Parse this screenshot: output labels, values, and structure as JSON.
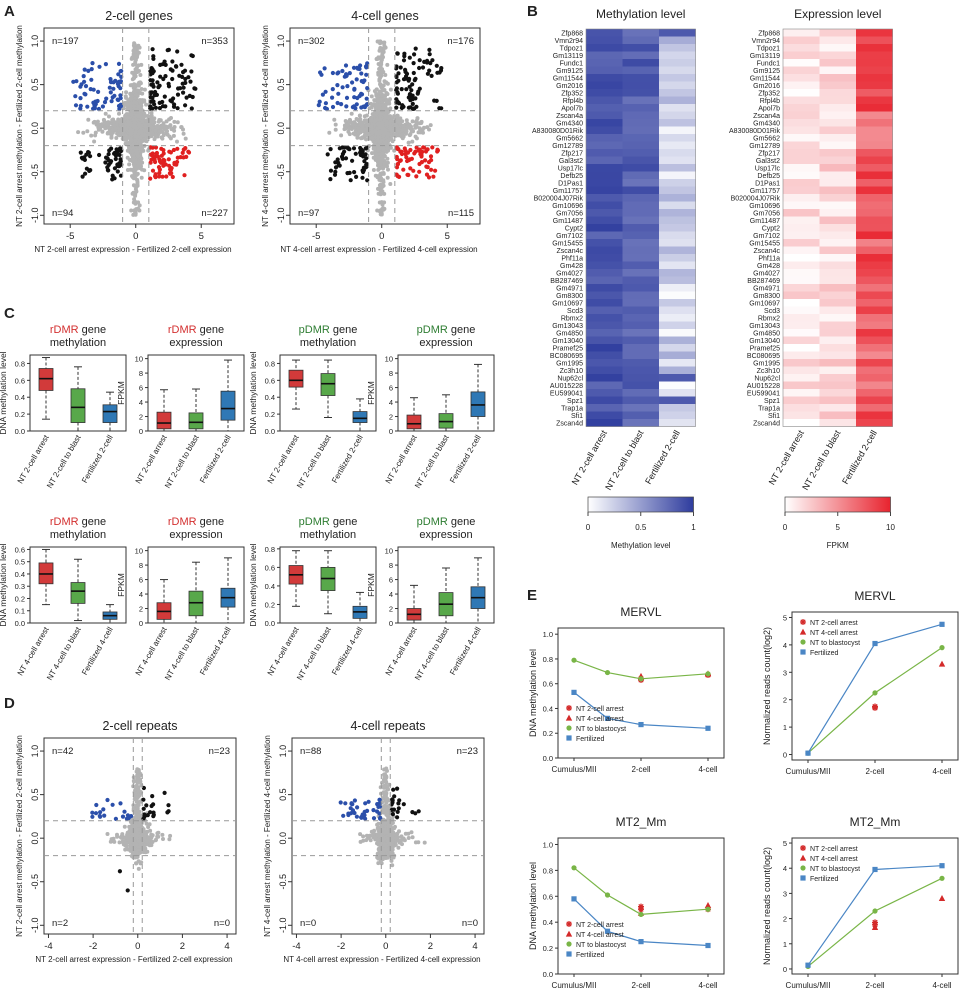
{
  "panel_letters": [
    "A",
    "B",
    "C",
    "D",
    "E"
  ],
  "colors": {
    "blue": "#2b4faa",
    "red": "#e02020",
    "black": "#111111",
    "grey": "#b3b3b3",
    "green": "#2e8b2e",
    "rdmr": "#d32f2f",
    "pdmr": "#2e7d32",
    "box_red": "#d23a3a",
    "box_green": "#58a84a",
    "box_blue": "#2f78b5",
    "meth_heat": "#2e3c9e",
    "exp_heat": "#e8232e",
    "line_blue": "#4a86c5",
    "line_green": "#79b547"
  },
  "chart_data": [
    {
      "id": "A1",
      "type": "scatter",
      "title": "2-cell genes",
      "xlabel": "NT 2-cell arrest expression - Fertilized 2-cell expression",
      "ylabel": "NT 2-cell arrest methylation - Fertilized 2-cell methylation",
      "xlim": [
        -7,
        7.5
      ],
      "ylim": [
        -1.1,
        1.15
      ],
      "xticks": [
        -5,
        0,
        5
      ],
      "yticks": [
        -1.0,
        -0.5,
        0.0,
        0.5,
        1.0
      ],
      "thresholds": {
        "x": [
          -1,
          1
        ],
        "y": [
          -0.2,
          0.2
        ]
      },
      "quadrant_counts": {
        "top_left": "n=197",
        "top_right": "n=353",
        "bottom_left": "n=94",
        "bottom_right": "n=227"
      }
    },
    {
      "id": "A2",
      "type": "scatter",
      "title": "4-cell genes",
      "xlabel": "NT 4-cell arrest expression - Fertilized 4-cell expression",
      "ylabel": "NT 4-cell arrest methylation - Fertilized 4-cell methylation",
      "xlim": [
        -7,
        7.5
      ],
      "ylim": [
        -1.1,
        1.15
      ],
      "xticks": [
        -5,
        0,
        5
      ],
      "yticks": [
        -1.0,
        -0.5,
        0.0,
        0.5,
        1.0
      ],
      "thresholds": {
        "x": [
          -1,
          1
        ],
        "y": [
          -0.2,
          0.2
        ]
      },
      "quadrant_counts": {
        "top_left": "n=302",
        "top_right": "n=176",
        "bottom_left": "n=97",
        "bottom_right": "n=115"
      }
    },
    {
      "id": "B1",
      "type": "heatmap",
      "title": "Methylation level",
      "genes": [
        "Zfp868",
        "Vmn2r94",
        "Tdpoz1",
        "Gm13119",
        "Fundc1",
        "Gm9125",
        "Gm11544",
        "Gm2016",
        "Zfp352",
        "Rfpl4b",
        "Apol7b",
        "Zscan4a",
        "Gm4340",
        "A830080D01Rik",
        "Gm5662",
        "Gm12789",
        "Zfp217",
        "Gal3st2",
        "Usp17lc",
        "Defb25",
        "D1Pas1",
        "Gm11757",
        "B020004J07Rik",
        "Gm10696",
        "Gm7056",
        "Gm11487",
        "Cypt2",
        "Gm7102",
        "Gm15455",
        "Zscan4c",
        "Phf11a",
        "Gm428",
        "Gm4027",
        "BB287469",
        "Gm4971",
        "Gm8300",
        "Gm10697",
        "Scd3",
        "Rbmx2",
        "Gm13043",
        "Gm4850",
        "Gm13040",
        "Pramef25",
        "BC080695",
        "Gm1995",
        "Zc3h10",
        "Nup62cl",
        "AU015228",
        "EU599041",
        "Spz1",
        "Trap1a",
        "Sfi1",
        "Zscan4d"
      ],
      "columns": [
        "NT 2-cell arrest",
        "NT 2-cell to blast",
        "Fertilized 2-cell"
      ],
      "legend_label": "Methylation level",
      "legend_ticks": [
        "0",
        "0.5",
        "1"
      ],
      "scale": [
        0,
        1
      ]
    },
    {
      "id": "B2",
      "type": "heatmap",
      "title": "Expression level",
      "genes": [
        "Zfp868",
        "Vmn2r94",
        "Tdpoz1",
        "Gm13119",
        "Fundc1",
        "Gm9125",
        "Gm11544",
        "Gm2016",
        "Zfp352",
        "Rfpl4b",
        "Apol7b",
        "Zscan4a",
        "Gm4340",
        "A830080D01Rik",
        "Gm5662",
        "Gm12789",
        "Zfp217",
        "Gal3st2",
        "Usp17lc",
        "Defb25",
        "D1Pas1",
        "Gm11757",
        "B020004J07Rik",
        "Gm10696",
        "Gm7056",
        "Gm11487",
        "Cypt2",
        "Gm7102",
        "Gm15455",
        "Zscan4c",
        "Phf11a",
        "Gm428",
        "Gm4027",
        "BB287469",
        "Gm4971",
        "Gm8300",
        "Gm10697",
        "Scd3",
        "Rbmx2",
        "Gm13043",
        "Gm4850",
        "Gm13040",
        "Pramef25",
        "BC080695",
        "Gm1995",
        "Zc3h10",
        "Nup62cl",
        "AU015228",
        "EU599041",
        "Spz1",
        "Trap1a",
        "Sfi1",
        "Zscan4d"
      ],
      "columns": [
        "NT 2-cell arrest",
        "NT 2-cell to blast",
        "Fertilized 2-cell"
      ],
      "legend_label": "FPKM",
      "legend_ticks": [
        "0",
        "5",
        "10"
      ],
      "scale": [
        0,
        10
      ]
    },
    {
      "id": "C1",
      "type": "box",
      "title_colored": "rDMR",
      "title_rest": " gene",
      "title_line2": "methylation",
      "title_color": "rdmr",
      "ylabel": "DNA methylation level",
      "ylim": [
        0,
        0.9
      ],
      "yticks": [
        "0.0",
        "0.2",
        "0.4",
        "0.6",
        "0.8"
      ],
      "categories": [
        "NT 2-cell arrest",
        "NT 2-cell to blast",
        "Fertilized 2-cell"
      ],
      "boxes": [
        {
          "q1": 0.48,
          "med": 0.62,
          "q3": 0.74,
          "lo": 0.14,
          "hi": 0.87
        },
        {
          "q1": 0.1,
          "med": 0.28,
          "q3": 0.5,
          "lo": 0.0,
          "hi": 0.76
        },
        {
          "q1": 0.1,
          "med": 0.23,
          "q3": 0.31,
          "lo": 0.0,
          "hi": 0.46
        }
      ]
    },
    {
      "id": "C2",
      "type": "box",
      "title_colored": "rDMR",
      "title_rest": " gene",
      "title_line2": "expression",
      "title_color": "rdmr",
      "ylabel": "FPKM",
      "ylim": [
        0,
        10.5
      ],
      "yticks": [
        "0",
        "2",
        "4",
        "6",
        "8",
        "10"
      ],
      "categories": [
        "NT 2-cell arrest",
        "NT 2-cell to blast",
        "Fertilized 2-cell"
      ],
      "boxes": [
        {
          "q1": 0.3,
          "med": 1.1,
          "q3": 2.6,
          "lo": 0,
          "hi": 5.7
        },
        {
          "q1": 0.3,
          "med": 1.2,
          "q3": 2.5,
          "lo": 0,
          "hi": 5.8
        },
        {
          "q1": 1.5,
          "med": 3.1,
          "q3": 5.5,
          "lo": 0,
          "hi": 9.8
        }
      ]
    },
    {
      "id": "C3",
      "type": "box",
      "title_colored": "pDMR",
      "title_rest": " gene",
      "title_line2": "methylation",
      "title_color": "pdmr",
      "ylabel": "DNA methylation level",
      "ylim": [
        0,
        0.9
      ],
      "yticks": [
        "0.0",
        "0.2",
        "0.4",
        "0.6",
        "0.8"
      ],
      "categories": [
        "NT 2-cell arrest",
        "NT 2-cell to blast",
        "Fertilized 2-cell"
      ],
      "boxes": [
        {
          "q1": 0.52,
          "med": 0.6,
          "q3": 0.72,
          "lo": 0.26,
          "hi": 0.84
        },
        {
          "q1": 0.42,
          "med": 0.56,
          "q3": 0.68,
          "lo": 0.16,
          "hi": 0.84
        },
        {
          "q1": 0.1,
          "med": 0.15,
          "q3": 0.23,
          "lo": 0.0,
          "hi": 0.38
        }
      ]
    },
    {
      "id": "C4",
      "type": "box",
      "title_colored": "pDMR",
      "title_rest": " gene",
      "title_line2": "expression",
      "title_color": "pdmr",
      "ylabel": "FPKM",
      "ylim": [
        0,
        10.5
      ],
      "yticks": [
        "0",
        "2",
        "4",
        "6",
        "8",
        "10"
      ],
      "categories": [
        "NT 2-cell arrest",
        "NT 2-cell to blast",
        "Fertilized 2-cell"
      ],
      "boxes": [
        {
          "q1": 0.3,
          "med": 1.0,
          "q3": 2.2,
          "lo": 0,
          "hi": 4.6
        },
        {
          "q1": 0.4,
          "med": 1.3,
          "q3": 2.4,
          "lo": 0,
          "hi": 5.0
        },
        {
          "q1": 2.0,
          "med": 3.6,
          "q3": 5.4,
          "lo": 0,
          "hi": 9.2
        }
      ]
    },
    {
      "id": "C5",
      "type": "box",
      "title_colored": "rDMR",
      "title_rest": " gene",
      "title_line2": "methylation",
      "title_color": "rdmr",
      "ylabel": "DNA methylation level",
      "ylim": [
        0,
        0.62
      ],
      "yticks": [
        "0.0",
        "0.1",
        "0.2",
        "0.3",
        "0.4",
        "0.5",
        "0.6"
      ],
      "categories": [
        "NT 4-cell arrest",
        "NT 4-cell to blast",
        "Fertilized 4-cell"
      ],
      "boxes": [
        {
          "q1": 0.32,
          "med": 0.4,
          "q3": 0.49,
          "lo": 0.15,
          "hi": 0.6
        },
        {
          "q1": 0.16,
          "med": 0.26,
          "q3": 0.33,
          "lo": 0.02,
          "hi": 0.52
        },
        {
          "q1": 0.03,
          "med": 0.06,
          "q3": 0.09,
          "lo": 0.0,
          "hi": 0.15
        }
      ]
    },
    {
      "id": "C6",
      "type": "box",
      "title_colored": "rDMR",
      "title_rest": " gene",
      "title_line2": "expression",
      "title_color": "rdmr",
      "ylabel": "FPKM",
      "ylim": [
        0,
        10.5
      ],
      "yticks": [
        "0",
        "2",
        "4",
        "6",
        "8",
        "10"
      ],
      "categories": [
        "NT 4-cell arrest",
        "NT 4-cell to blast",
        "Fertilized 4-cell"
      ],
      "boxes": [
        {
          "q1": 0.5,
          "med": 1.6,
          "q3": 2.8,
          "lo": 0,
          "hi": 6.0
        },
        {
          "q1": 1.0,
          "med": 2.8,
          "q3": 4.4,
          "lo": 0,
          "hi": 8.4
        },
        {
          "q1": 2.2,
          "med": 3.5,
          "q3": 4.8,
          "lo": 0,
          "hi": 9.0
        }
      ]
    },
    {
      "id": "C7",
      "type": "box",
      "title_colored": "pDMR",
      "title_rest": " gene",
      "title_line2": "methylation",
      "title_color": "pdmr",
      "ylabel": "DNA methylation level",
      "ylim": [
        0,
        0.82
      ],
      "yticks": [
        "0.0",
        "0.2",
        "0.4",
        "0.6",
        "0.8"
      ],
      "categories": [
        "NT 4-cell arrest",
        "NT 4-cell to blast",
        "Fertilized 4-cell"
      ],
      "boxes": [
        {
          "q1": 0.42,
          "med": 0.52,
          "q3": 0.62,
          "lo": 0.18,
          "hi": 0.78
        },
        {
          "q1": 0.35,
          "med": 0.48,
          "q3": 0.6,
          "lo": 0.1,
          "hi": 0.78
        },
        {
          "q1": 0.05,
          "med": 0.12,
          "q3": 0.18,
          "lo": 0.0,
          "hi": 0.33
        }
      ]
    },
    {
      "id": "C8",
      "type": "box",
      "title_colored": "pDMR",
      "title_rest": " gene",
      "title_line2": "expression",
      "title_color": "pdmr",
      "ylabel": "FPKM",
      "ylim": [
        0,
        10.5
      ],
      "yticks": [
        "0",
        "2",
        "4",
        "6",
        "8",
        "10"
      ],
      "categories": [
        "NT 4-cell arrest",
        "NT 4-cell to blast",
        "Fertilized 4-cell"
      ],
      "boxes": [
        {
          "q1": 0.4,
          "med": 1.2,
          "q3": 2.0,
          "lo": 0,
          "hi": 5.2
        },
        {
          "q1": 1.0,
          "med": 2.6,
          "q3": 4.2,
          "lo": 0,
          "hi": 7.6
        },
        {
          "q1": 2.0,
          "med": 3.5,
          "q3": 5.0,
          "lo": 0,
          "hi": 9.0
        }
      ]
    },
    {
      "id": "D1",
      "type": "scatter",
      "title": "2-cell repeats",
      "xlabel": "NT 2-cell arrest expression - Fertilized 2-cell expression",
      "ylabel": "NT 2-cell arrest methylation - Fertilized 2-cell methylation",
      "xlim": [
        -4.2,
        4.4
      ],
      "ylim": [
        -1.1,
        1.15
      ],
      "xticks": [
        -4,
        -2,
        0,
        2,
        4
      ],
      "yticks": [
        -1.0,
        -0.5,
        0.0,
        0.5,
        1.0
      ],
      "thresholds": {
        "x": [
          -0.2,
          0.2
        ],
        "y": [
          -0.2,
          0.2
        ]
      },
      "quadrant_counts": {
        "top_left": "n=42",
        "top_right": "n=23",
        "bottom_left": "n=2",
        "bottom_right": "n=0"
      }
    },
    {
      "id": "D2",
      "type": "scatter",
      "title": "4-cell repeats",
      "xlabel": "NT 4-cell arrest expression - Fertilized 4-cell expression",
      "ylabel": "NT 4-cell arrest methylation - Fertilized 4-cell methylation",
      "xlim": [
        -4.2,
        4.4
      ],
      "ylim": [
        -1.1,
        1.15
      ],
      "xticks": [
        -4,
        -2,
        0,
        2,
        4
      ],
      "yticks": [
        -1.0,
        -0.5,
        0.0,
        0.5,
        1.0
      ],
      "thresholds": {
        "x": [
          -0.2,
          0.2
        ],
        "y": [
          -0.2,
          0.2
        ]
      },
      "quadrant_counts": {
        "top_left": "n=88",
        "top_right": "n=23",
        "bottom_left": "n=0",
        "bottom_right": "n=0"
      }
    },
    {
      "id": "E1",
      "type": "line",
      "title": "MERVL",
      "ylabel": "DNA methylation level",
      "ylim": [
        0,
        1.05
      ],
      "yticks": [
        "0.0",
        "0.2",
        "0.4",
        "0.6",
        "0.8",
        "1.0"
      ],
      "categories": [
        "Cumulus/MII",
        "2-cell",
        "4-cell"
      ],
      "series": [
        {
          "name": "NT 2-cell arrest",
          "marker": "star",
          "color": "#d42a2a",
          "points": [
            [
              1,
              0.64
            ],
            [
              1,
              0.63
            ],
            [
              2,
              0.67
            ]
          ]
        },
        {
          "name": "NT 4-cell arrest",
          "marker": "triangle",
          "color": "#d42a2a",
          "points": [
            [
              2,
              0.68
            ],
            [
              1,
              0.66
            ]
          ]
        },
        {
          "name": "NT to blastocyst",
          "marker": "circle",
          "color": "#79b547",
          "line": true,
          "x": [
            0,
            0.5,
            1,
            2
          ],
          "values": [
            0.79,
            0.69,
            0.64,
            0.68
          ]
        },
        {
          "name": "Fertilized",
          "marker": "square",
          "color": "#4a86c5",
          "line": true,
          "x": [
            0,
            0.5,
            1,
            2
          ],
          "values": [
            0.53,
            0.32,
            0.27,
            0.24
          ]
        }
      ]
    },
    {
      "id": "E2",
      "type": "line",
      "title": "MERVL",
      "ylabel": "Normalized reads count(log2)",
      "ylim": [
        -0.2,
        5.2
      ],
      "yticks": [
        "0",
        "1",
        "2",
        "3",
        "4",
        "5"
      ],
      "categories": [
        "Cumulus/MII",
        "2-cell",
        "4-cell"
      ],
      "series": [
        {
          "name": "NT 2-cell arrest",
          "marker": "star",
          "color": "#d42a2a",
          "points": [
            [
              1,
              1.75
            ],
            [
              1,
              1.7
            ]
          ]
        },
        {
          "name": "NT 4-cell arrest",
          "marker": "triangle",
          "color": "#d42a2a",
          "points": [
            [
              2,
              3.3
            ]
          ]
        },
        {
          "name": "NT to blastocyst",
          "marker": "circle",
          "color": "#79b547",
          "line": true,
          "x": [
            0,
            1,
            2
          ],
          "values": [
            0.05,
            2.25,
            3.9
          ]
        },
        {
          "name": "Fertilized",
          "marker": "square",
          "color": "#4a86c5",
          "line": true,
          "x": [
            0,
            1,
            2
          ],
          "values": [
            0.05,
            4.05,
            4.75
          ]
        }
      ]
    },
    {
      "id": "E3",
      "type": "line",
      "title": "MT2_Mm",
      "ylabel": "DNA methylation level",
      "ylim": [
        0,
        1.05
      ],
      "yticks": [
        "0.0",
        "0.2",
        "0.4",
        "0.6",
        "0.8",
        "1.0"
      ],
      "categories": [
        "Cumulus/MII",
        "2-cell",
        "4-cell"
      ],
      "series": [
        {
          "name": "NT 2-cell arrest",
          "marker": "star",
          "color": "#d42a2a",
          "points": [
            [
              1,
              0.52
            ],
            [
              1,
              0.5
            ],
            [
              2,
              0.5
            ]
          ]
        },
        {
          "name": "NT 4-cell arrest",
          "marker": "triangle",
          "color": "#d42a2a",
          "points": [
            [
              2,
              0.53
            ],
            [
              1,
              0.47
            ]
          ]
        },
        {
          "name": "NT to blastocyst",
          "marker": "circle",
          "color": "#79b547",
          "line": true,
          "x": [
            0,
            0.5,
            1,
            2
          ],
          "values": [
            0.82,
            0.61,
            0.46,
            0.5
          ]
        },
        {
          "name": "Fertilized",
          "marker": "square",
          "color": "#4a86c5",
          "line": true,
          "x": [
            0,
            0.5,
            1,
            2
          ],
          "values": [
            0.58,
            0.33,
            0.25,
            0.22
          ]
        }
      ]
    },
    {
      "id": "E4",
      "type": "line",
      "title": "MT2_Mm",
      "ylabel": "Normalized reads count(log2)",
      "ylim": [
        -0.2,
        5.2
      ],
      "yticks": [
        "0",
        "1",
        "2",
        "3",
        "4",
        "5"
      ],
      "categories": [
        "Cumulus/MII",
        "2-cell",
        "4-cell"
      ],
      "series": [
        {
          "name": "NT 2-cell arrest",
          "marker": "star",
          "color": "#d42a2a",
          "points": [
            [
              1,
              1.85
            ],
            [
              1,
              1.75
            ]
          ]
        },
        {
          "name": "NT 4-cell arrest",
          "marker": "triangle",
          "color": "#d42a2a",
          "points": [
            [
              2,
              2.8
            ],
            [
              1,
              1.65
            ]
          ]
        },
        {
          "name": "NT to blastocyst",
          "marker": "circle",
          "color": "#79b547",
          "line": true,
          "x": [
            0,
            1,
            2
          ],
          "values": [
            0.1,
            2.3,
            3.6
          ]
        },
        {
          "name": "Fertilized",
          "marker": "square",
          "color": "#4a86c5",
          "line": true,
          "x": [
            0,
            1,
            2
          ],
          "values": [
            0.15,
            3.95,
            4.1
          ]
        }
      ]
    }
  ]
}
